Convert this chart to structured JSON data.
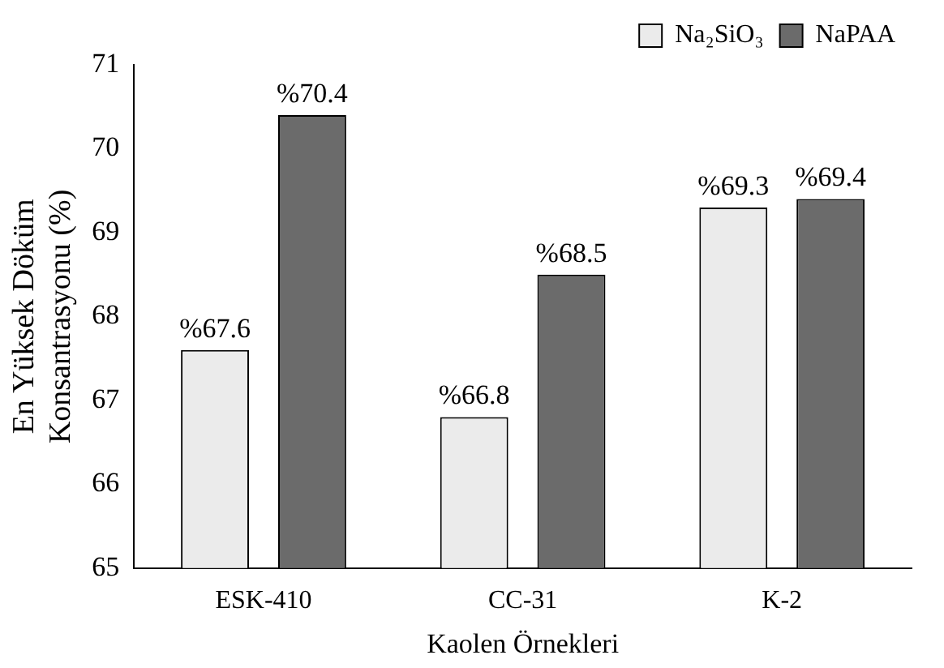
{
  "chart_data": {
    "type": "bar",
    "xlabel": "Kaolen Örnekleri",
    "ylabel": "En Yüksek Döküm Konsantrasyonu (%)",
    "categories": [
      "ESK-410",
      "CC-31",
      "K-2"
    ],
    "series": [
      {
        "name": "Na₂SiO₃",
        "color": "#ebebeb",
        "values": [
          67.6,
          66.8,
          69.3
        ],
        "value_labels": [
          "%67.6",
          "%66.8",
          "%69.3"
        ]
      },
      {
        "name": "NaPAA",
        "color": "#6b6b6b",
        "values": [
          70.4,
          68.5,
          69.4
        ],
        "value_labels": [
          "%70.4",
          "%68.5",
          "%69.4"
        ]
      }
    ],
    "ylim": [
      65,
      71
    ],
    "yticks": [
      65,
      66,
      67,
      68,
      69,
      70,
      71
    ],
    "grid": false,
    "legend": "top right"
  }
}
